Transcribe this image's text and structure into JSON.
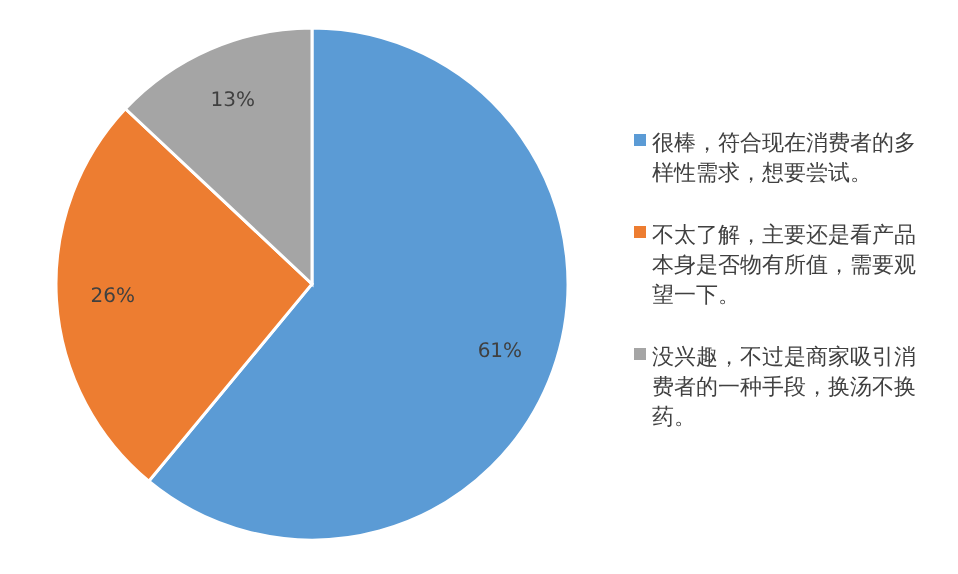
{
  "chart_data": {
    "type": "pie",
    "categories": [
      "很棒，符合现在消费者的多样性需求，想要尝试。",
      "不太了解，主要还是看产品本身是否物有所值，需要观望一下。",
      "没兴趣，不过是商家吸引消费者的一种手段，换汤不换药。"
    ],
    "values": [
      61,
      26,
      13
    ],
    "value_labels": [
      "61%",
      "26%",
      "13%"
    ],
    "colors": [
      "#5b9bd5",
      "#ed7d31",
      "#a5a5a5"
    ],
    "legend": "right"
  }
}
